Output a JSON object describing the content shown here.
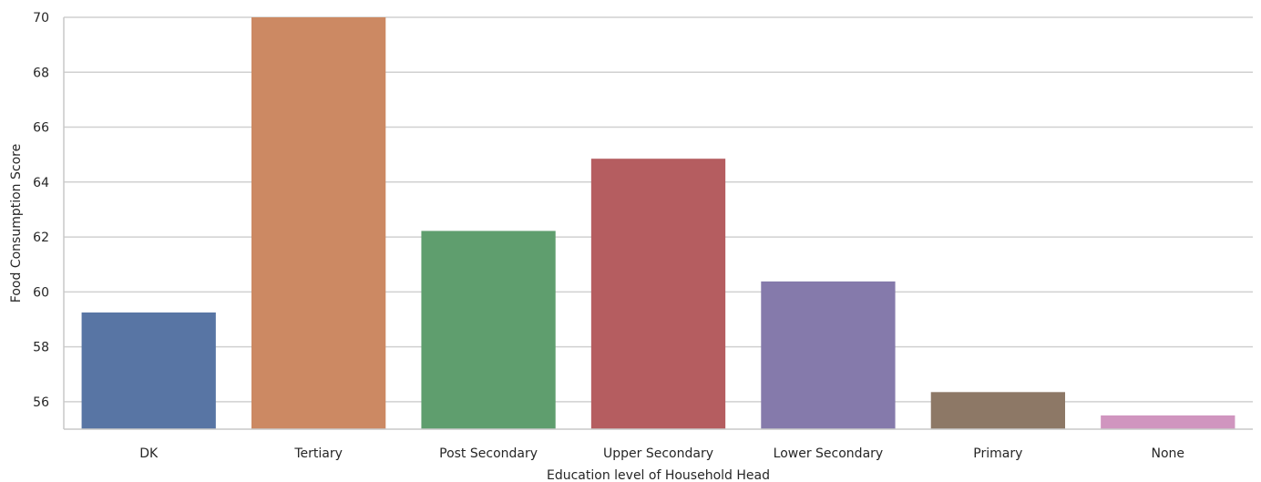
{
  "chart_data": {
    "type": "bar",
    "title": "",
    "xlabel": "Education level of Household Head",
    "ylabel": "Food Consumption Score",
    "categories": [
      "DK",
      "Tertiary",
      "Post Secondary",
      "Upper Secondary",
      "Lower Secondary",
      "Primary",
      "None"
    ],
    "values": [
      59.25,
      70.0,
      62.22,
      64.85,
      60.38,
      56.35,
      55.5
    ],
    "colors": [
      "#5875a4",
      "#cc8963",
      "#5f9e6e",
      "#b55d60",
      "#857aab",
      "#8d7866",
      "#d095bf"
    ],
    "ylim": [
      55,
      70
    ],
    "yticks": [
      56,
      58,
      60,
      62,
      64,
      66,
      68,
      70
    ],
    "grid": true,
    "legend": "none"
  }
}
